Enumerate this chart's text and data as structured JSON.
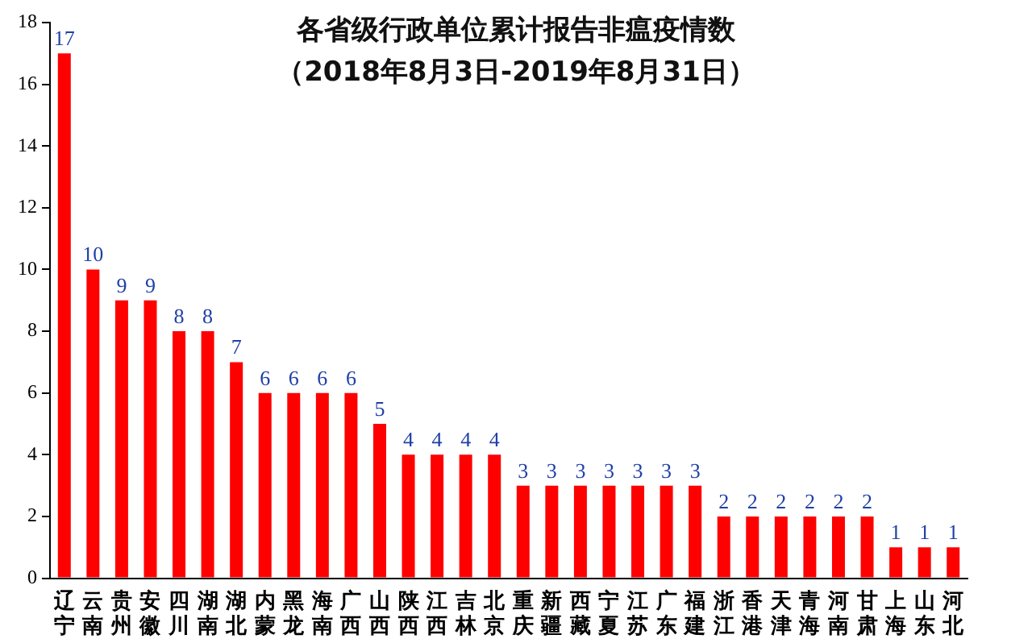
{
  "chart_data": {
    "type": "bar",
    "title": "各省级行政单位累计报告非瘟疫情数",
    "subtitle": "（2018年8月3日-2019年8月31日）",
    "categories": [
      "辽宁",
      "云南",
      "贵州",
      "安徽",
      "四川",
      "湖南",
      "湖北",
      "内蒙",
      "黑龙",
      "海南",
      "广西",
      "山西",
      "陕西",
      "江西",
      "吉林",
      "北京",
      "重庆",
      "新疆",
      "西藏",
      "宁夏",
      "江苏",
      "广东",
      "福建",
      "浙江",
      "香港",
      "天津",
      "青海",
      "河南",
      "甘肃",
      "上海",
      "山东",
      "河北"
    ],
    "values": [
      17,
      10,
      9,
      9,
      8,
      8,
      7,
      6,
      6,
      6,
      6,
      5,
      4,
      4,
      4,
      4,
      3,
      3,
      3,
      3,
      3,
      3,
      3,
      2,
      2,
      2,
      2,
      2,
      2,
      1,
      1,
      1
    ],
    "color": "#ff0000",
    "ylim": [
      0,
      18
    ],
    "yticks": [
      0,
      2,
      4,
      6,
      8,
      10,
      12,
      14,
      16,
      18
    ],
    "grid": false,
    "data_labels": true
  }
}
